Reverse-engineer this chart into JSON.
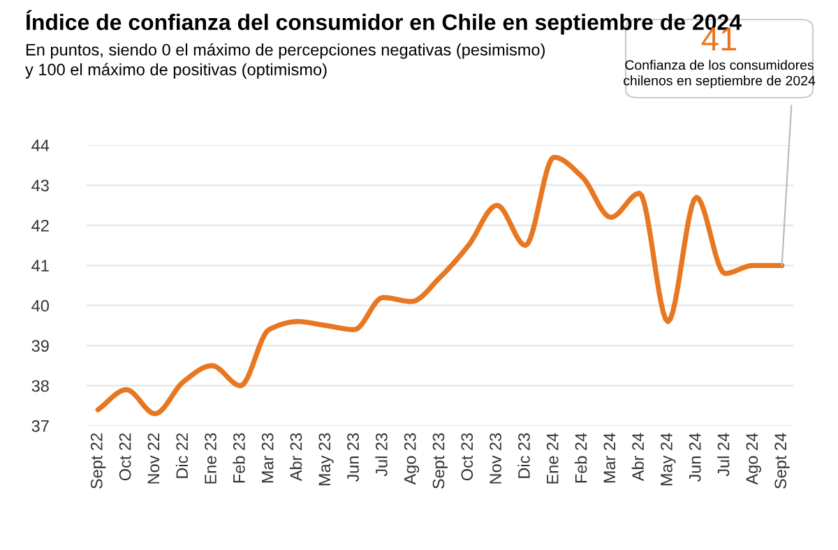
{
  "chart_data": {
    "type": "line",
    "title": "Índice de confianza del consumidor en Chile en septiembre de 2024",
    "subtitle": "En puntos, siendo 0 el máximo de percepciones negativas (pesimismo)\ny 100 el máximo de positivas (optimismo)",
    "categories": [
      "Sept 22",
      "Oct 22",
      "Nov 22",
      "Dic 22",
      "Ene 23",
      "Feb 23",
      "Mar 23",
      "Abr 23",
      "May 23",
      "Jun 23",
      "Jul 23",
      "Ago 23",
      "Sept 23",
      "Oct 23",
      "Nov 23",
      "Dic 23",
      "Ene 24",
      "Feb 24",
      "Mar 24",
      "Abr 24",
      "May 24",
      "Jun 24",
      "Jul 24",
      "Ago 24",
      "Sept 24"
    ],
    "series": [
      {
        "color": "#e87722",
        "values": [
          37.4,
          37.9,
          37.3,
          38.1,
          38.5,
          38.0,
          39.4,
          39.6,
          39.5,
          39.4,
          40.2,
          40.1,
          40.7,
          41.5,
          42.5,
          41.5,
          43.7,
          43.2,
          42.2,
          42.8,
          39.6,
          42.7,
          40.8,
          41.0,
          41.0
        ]
      }
    ],
    "ylim": [
      37,
      44
    ],
    "yticks": [
      37,
      38,
      39,
      40,
      41,
      42,
      43,
      44
    ],
    "grid": "y",
    "marker": "none",
    "line_style": "solid",
    "annotations": [
      "41",
      {
        "text": "Confianza de los consumidores\nchilenos en septiembre de 2024",
        "x": "Sept 24",
        "y": 41
      }
    ]
  }
}
